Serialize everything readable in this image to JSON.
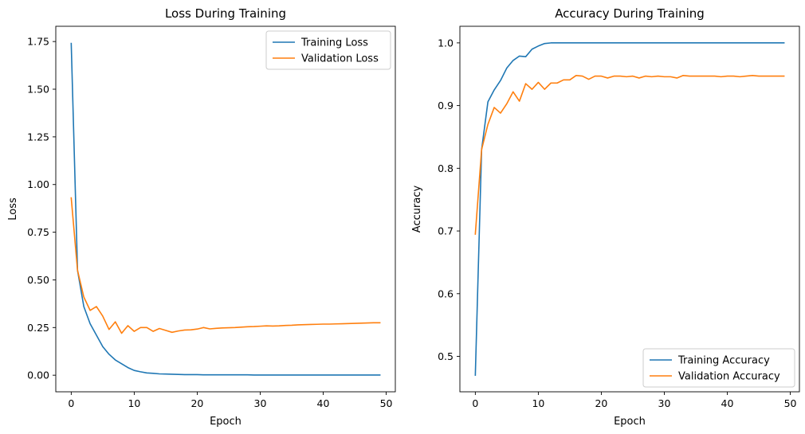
{
  "colors": {
    "training": "#1f77b4",
    "validation": "#ff7f0e"
  },
  "chart_data": [
    {
      "type": "line",
      "title": "Loss During Training",
      "xlabel": "Epoch",
      "ylabel": "Loss",
      "xlim": [
        -2.45,
        51.45
      ],
      "ylim": [
        -0.087,
        1.83
      ],
      "xticks": [
        0,
        10,
        20,
        30,
        40,
        50
      ],
      "xtick_labels": [
        "0",
        "10",
        "20",
        "30",
        "40",
        "50"
      ],
      "yticks": [
        0.0,
        0.25,
        0.5,
        0.75,
        1.0,
        1.25,
        1.5,
        1.75
      ],
      "ytick_labels": [
        "0.00",
        "0.25",
        "0.50",
        "0.75",
        "1.00",
        "1.25",
        "1.50",
        "1.75"
      ],
      "legend_position": "upper right",
      "grid": false,
      "series": [
        {
          "name": "Training Loss",
          "color_key": "training",
          "x": [
            0,
            1,
            2,
            3,
            4,
            5,
            6,
            7,
            8,
            9,
            10,
            11,
            12,
            13,
            14,
            15,
            16,
            17,
            18,
            19,
            20,
            21,
            22,
            23,
            24,
            25,
            26,
            27,
            28,
            29,
            30,
            31,
            32,
            33,
            34,
            35,
            36,
            37,
            38,
            39,
            40,
            41,
            42,
            43,
            44,
            45,
            46,
            47,
            48,
            49
          ],
          "values": [
            1.74,
            0.55,
            0.36,
            0.27,
            0.21,
            0.15,
            0.11,
            0.08,
            0.06,
            0.04,
            0.025,
            0.018,
            0.012,
            0.01,
            0.007,
            0.006,
            0.005,
            0.004,
            0.003,
            0.003,
            0.003,
            0.002,
            0.002,
            0.002,
            0.002,
            0.002,
            0.002,
            0.002,
            0.002,
            0.001,
            0.001,
            0.001,
            0.001,
            0.001,
            0.001,
            0.001,
            0.001,
            0.001,
            0.001,
            0.001,
            0.001,
            0.001,
            0.001,
            0.001,
            0.001,
            0.001,
            0.001,
            0.001,
            0.001,
            0.001
          ]
        },
        {
          "name": "Validation Loss",
          "color_key": "validation",
          "x": [
            0,
            1,
            2,
            3,
            4,
            5,
            6,
            7,
            8,
            9,
            10,
            11,
            12,
            13,
            14,
            15,
            16,
            17,
            18,
            19,
            20,
            21,
            22,
            23,
            24,
            25,
            26,
            27,
            28,
            29,
            30,
            31,
            32,
            33,
            34,
            35,
            36,
            37,
            38,
            39,
            40,
            41,
            42,
            43,
            44,
            45,
            46,
            47,
            48,
            49
          ],
          "values": [
            0.93,
            0.55,
            0.41,
            0.34,
            0.36,
            0.31,
            0.24,
            0.28,
            0.22,
            0.26,
            0.23,
            0.25,
            0.25,
            0.23,
            0.245,
            0.235,
            0.225,
            0.232,
            0.237,
            0.238,
            0.242,
            0.25,
            0.243,
            0.246,
            0.248,
            0.249,
            0.25,
            0.252,
            0.254,
            0.255,
            0.257,
            0.259,
            0.258,
            0.259,
            0.261,
            0.262,
            0.264,
            0.265,
            0.266,
            0.267,
            0.268,
            0.268,
            0.269,
            0.27,
            0.271,
            0.272,
            0.273,
            0.274,
            0.275,
            0.275
          ]
        }
      ]
    },
    {
      "type": "line",
      "title": "Accuracy During Training",
      "xlabel": "Epoch",
      "ylabel": "Accuracy",
      "xlim": [
        -2.45,
        51.45
      ],
      "ylim": [
        0.4435,
        1.0265
      ],
      "xticks": [
        0,
        10,
        20,
        30,
        40,
        50
      ],
      "xtick_labels": [
        "0",
        "10",
        "20",
        "30",
        "40",
        "50"
      ],
      "yticks": [
        0.5,
        0.6,
        0.7,
        0.8,
        0.9,
        1.0
      ],
      "ytick_labels": [
        "0.5",
        "0.6",
        "0.7",
        "0.8",
        "0.9",
        "1.0"
      ],
      "legend_position": "lower right",
      "grid": false,
      "series": [
        {
          "name": "Training Accuracy",
          "color_key": "training",
          "x": [
            0,
            1,
            2,
            3,
            4,
            5,
            6,
            7,
            8,
            9,
            10,
            11,
            12,
            13,
            14,
            15,
            16,
            17,
            18,
            19,
            20,
            21,
            22,
            23,
            24,
            25,
            26,
            27,
            28,
            29,
            30,
            31,
            32,
            33,
            34,
            35,
            36,
            37,
            38,
            39,
            40,
            41,
            42,
            43,
            44,
            45,
            46,
            47,
            48,
            49
          ],
          "values": [
            0.47,
            0.83,
            0.906,
            0.925,
            0.94,
            0.96,
            0.972,
            0.979,
            0.978,
            0.99,
            0.995,
            0.999,
            1.0,
            1.0,
            1.0,
            1.0,
            1.0,
            1.0,
            1.0,
            1.0,
            1.0,
            1.0,
            1.0,
            1.0,
            1.0,
            1.0,
            1.0,
            1.0,
            1.0,
            1.0,
            1.0,
            1.0,
            1.0,
            1.0,
            1.0,
            1.0,
            1.0,
            1.0,
            1.0,
            1.0,
            1.0,
            1.0,
            1.0,
            1.0,
            1.0,
            1.0,
            1.0,
            1.0,
            1.0,
            1.0
          ]
        },
        {
          "name": "Validation Accuracy",
          "color_key": "validation",
          "x": [
            0,
            1,
            2,
            3,
            4,
            5,
            6,
            7,
            8,
            9,
            10,
            11,
            12,
            13,
            14,
            15,
            16,
            17,
            18,
            19,
            20,
            21,
            22,
            23,
            24,
            25,
            26,
            27,
            28,
            29,
            30,
            31,
            32,
            33,
            34,
            35,
            36,
            37,
            38,
            39,
            40,
            41,
            42,
            43,
            44,
            45,
            46,
            47,
            48,
            49
          ],
          "values": [
            0.695,
            0.83,
            0.87,
            0.897,
            0.888,
            0.903,
            0.922,
            0.907,
            0.935,
            0.926,
            0.937,
            0.926,
            0.936,
            0.936,
            0.941,
            0.941,
            0.948,
            0.947,
            0.942,
            0.947,
            0.947,
            0.944,
            0.947,
            0.947,
            0.946,
            0.947,
            0.944,
            0.947,
            0.946,
            0.947,
            0.946,
            0.946,
            0.944,
            0.948,
            0.947,
            0.947,
            0.947,
            0.947,
            0.947,
            0.946,
            0.947,
            0.947,
            0.946,
            0.947,
            0.948,
            0.947,
            0.947,
            0.947,
            0.947,
            0.947
          ]
        }
      ]
    }
  ]
}
